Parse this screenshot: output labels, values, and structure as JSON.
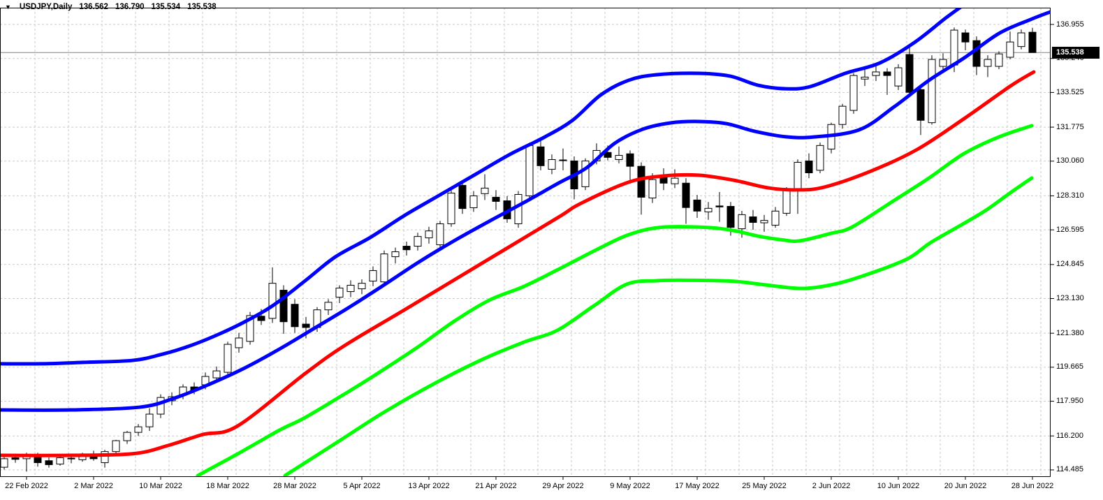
{
  "header": {
    "dropdown_glyph": "▼",
    "symbol_period": "USDJPY,Daily",
    "open": "136.562",
    "high": "136.790",
    "low": "135.534",
    "close": "135.538"
  },
  "price_axis": {
    "labels": [
      {
        "text": "136.955",
        "value": 136.955
      },
      {
        "text": "135.240",
        "value": 135.24
      },
      {
        "text": "133.525",
        "value": 133.525
      },
      {
        "text": "131.775",
        "value": 131.775
      },
      {
        "text": "130.060",
        "value": 130.06
      },
      {
        "text": "128.310",
        "value": 128.31
      },
      {
        "text": "126.595",
        "value": 126.595
      },
      {
        "text": "124.845",
        "value": 124.845
      },
      {
        "text": "123.130",
        "value": 123.13
      },
      {
        "text": "121.380",
        "value": 121.38
      },
      {
        "text": "119.665",
        "value": 119.665
      },
      {
        "text": "117.950",
        "value": 117.95
      },
      {
        "text": "116.200",
        "value": 116.2
      },
      {
        "text": "114.485",
        "value": 114.485
      }
    ],
    "current_price_tag": "135.538"
  },
  "time_axis": {
    "labels": [
      {
        "text": "22 Feb 2022",
        "candle_index": 2
      },
      {
        "text": "2 Mar 2022",
        "candle_index": 8
      },
      {
        "text": "10 Mar 2022",
        "candle_index": 14
      },
      {
        "text": "18 Mar 2022",
        "candle_index": 20
      },
      {
        "text": "28 Mar 2022",
        "candle_index": 26
      },
      {
        "text": "5 Apr 2022",
        "candle_index": 32
      },
      {
        "text": "13 Apr 2022",
        "candle_index": 38
      },
      {
        "text": "21 Apr 2022",
        "candle_index": 44
      },
      {
        "text": "29 Apr 2022",
        "candle_index": 50
      },
      {
        "text": "9 May 2022",
        "candle_index": 56
      },
      {
        "text": "17 May 2022",
        "candle_index": 62
      },
      {
        "text": "25 May 2022",
        "candle_index": 68
      },
      {
        "text": "2 Jun 2022",
        "candle_index": 74
      },
      {
        "text": "10 Jun 2022",
        "candle_index": 80
      },
      {
        "text": "20 Jun 2022",
        "candle_index": 86
      },
      {
        "text": "28 Jun 2022",
        "candle_index": 92
      }
    ]
  },
  "chart_data": {
    "type": "candlestick",
    "title": "USDJPY,Daily",
    "symbol": "USDJPY",
    "timeframe": "Daily",
    "grid": true,
    "legend_position": "none",
    "ylim": [
      114.13,
      138.19
    ],
    "current_price": 135.538,
    "last_bar_ohlc": [
      136.562,
      136.79,
      135.534,
      135.538
    ],
    "ohlc": [
      [
        114.62,
        115.15,
        114.5,
        115.05
      ],
      [
        115.1,
        115.3,
        114.85,
        115.02
      ],
      [
        115.05,
        115.35,
        114.4,
        115.25
      ],
      [
        115.25,
        115.35,
        114.65,
        114.85
      ],
      [
        114.95,
        115.12,
        114.6,
        114.75
      ],
      [
        114.78,
        115.2,
        114.7,
        115.1
      ],
      [
        115.08,
        115.3,
        114.82,
        115.04
      ],
      [
        115.0,
        115.35,
        114.9,
        115.28
      ],
      [
        115.28,
        115.45,
        114.95,
        115.05
      ],
      [
        114.85,
        115.5,
        114.6,
        115.41
      ],
      [
        115.41,
        116.0,
        115.25,
        115.96
      ],
      [
        115.96,
        116.45,
        115.8,
        116.38
      ],
      [
        116.38,
        116.8,
        116.2,
        116.66
      ],
      [
        116.66,
        117.6,
        116.45,
        117.3
      ],
      [
        117.3,
        118.3,
        117.1,
        118.14
      ],
      [
        117.97,
        118.4,
        117.75,
        118.18
      ],
      [
        118.25,
        118.8,
        118.05,
        118.67
      ],
      [
        118.67,
        118.9,
        118.3,
        118.49
      ],
      [
        118.78,
        119.4,
        118.55,
        119.2
      ],
      [
        119.13,
        119.7,
        118.9,
        119.48
      ],
      [
        119.41,
        120.95,
        119.3,
        120.82
      ],
      [
        120.65,
        121.4,
        120.4,
        121.14
      ],
      [
        120.97,
        122.45,
        120.8,
        122.27
      ],
      [
        122.24,
        122.6,
        121.8,
        122.02
      ],
      [
        122.13,
        124.7,
        121.9,
        123.9
      ],
      [
        123.55,
        123.8,
        121.35,
        121.96
      ],
      [
        122.84,
        123.1,
        121.4,
        121.71
      ],
      [
        121.84,
        122.2,
        121.12,
        121.67
      ],
      [
        121.67,
        122.7,
        121.45,
        122.56
      ],
      [
        122.56,
        123.1,
        122.3,
        122.94
      ],
      [
        123.2,
        123.8,
        122.9,
        123.66
      ],
      [
        123.48,
        124.05,
        123.2,
        123.8
      ],
      [
        123.62,
        124.1,
        123.35,
        123.9
      ],
      [
        124.01,
        124.75,
        123.75,
        124.54
      ],
      [
        123.97,
        125.55,
        123.8,
        125.38
      ],
      [
        125.24,
        125.7,
        124.9,
        125.49
      ],
      [
        125.77,
        126.0,
        125.3,
        125.59
      ],
      [
        125.77,
        126.45,
        125.55,
        126.26
      ],
      [
        126.19,
        126.75,
        125.9,
        126.54
      ],
      [
        125.84,
        127.05,
        125.6,
        126.9
      ],
      [
        126.9,
        128.6,
        126.75,
        128.45
      ],
      [
        128.84,
        129.1,
        127.4,
        127.67
      ],
      [
        127.71,
        128.55,
        127.5,
        128.31
      ],
      [
        128.42,
        129.4,
        128.1,
        128.7
      ],
      [
        128.24,
        128.6,
        127.6,
        128.03
      ],
      [
        128.06,
        128.3,
        126.95,
        127.15
      ],
      [
        126.9,
        128.55,
        126.7,
        128.38
      ],
      [
        128.31,
        131.0,
        128.2,
        130.85
      ],
      [
        130.78,
        131.25,
        129.6,
        129.83
      ],
      [
        129.65,
        130.4,
        129.4,
        130.14
      ],
      [
        130.12,
        130.7,
        129.6,
        130.09
      ],
      [
        130.07,
        130.3,
        128.13,
        128.66
      ],
      [
        128.77,
        130.2,
        128.6,
        130.07
      ],
      [
        130.07,
        130.96,
        129.9,
        130.6
      ],
      [
        130.5,
        130.85,
        130.1,
        130.25
      ],
      [
        130.14,
        130.8,
        129.95,
        130.35
      ],
      [
        130.43,
        130.6,
        129.0,
        129.8
      ],
      [
        129.8,
        130.0,
        127.36,
        128.24
      ],
      [
        128.2,
        129.45,
        127.95,
        129.13
      ],
      [
        129.26,
        129.7,
        128.6,
        128.95
      ],
      [
        128.92,
        129.65,
        128.7,
        129.2
      ],
      [
        128.95,
        129.2,
        126.9,
        127.72
      ],
      [
        128.1,
        128.35,
        127.2,
        127.54
      ],
      [
        127.5,
        128.0,
        127.1,
        127.68
      ],
      [
        127.8,
        128.5,
        127.0,
        127.75
      ],
      [
        127.78,
        128.0,
        126.3,
        126.72
      ],
      [
        126.65,
        127.55,
        126.2,
        127.36
      ],
      [
        127.25,
        127.6,
        126.6,
        126.97
      ],
      [
        126.95,
        127.35,
        126.5,
        127.07
      ],
      [
        126.83,
        127.75,
        126.7,
        127.54
      ],
      [
        127.43,
        128.75,
        127.3,
        128.59
      ],
      [
        128.6,
        130.15,
        127.4,
        130.0
      ],
      [
        130.07,
        130.45,
        129.2,
        129.47
      ],
      [
        129.6,
        131.0,
        129.45,
        130.85
      ],
      [
        130.67,
        132.0,
        130.45,
        131.91
      ],
      [
        131.91,
        132.95,
        131.7,
        132.83
      ],
      [
        132.62,
        134.5,
        132.45,
        134.38
      ],
      [
        134.2,
        134.75,
        133.85,
        134.3
      ],
      [
        134.38,
        134.85,
        134.1,
        134.56
      ],
      [
        134.56,
        134.75,
        133.4,
        134.38
      ],
      [
        133.85,
        134.95,
        133.65,
        134.77
      ],
      [
        135.44,
        135.8,
        133.3,
        133.53
      ],
      [
        133.67,
        133.9,
        131.38,
        132.12
      ],
      [
        132.0,
        135.4,
        131.9,
        135.19
      ],
      [
        134.84,
        135.5,
        134.5,
        135.19
      ],
      [
        134.91,
        136.8,
        134.55,
        136.67
      ],
      [
        136.53,
        136.7,
        135.65,
        136.07
      ],
      [
        136.14,
        136.35,
        134.4,
        134.84
      ],
      [
        134.84,
        135.4,
        134.3,
        135.19
      ],
      [
        134.84,
        135.6,
        134.7,
        135.47
      ],
      [
        135.3,
        136.6,
        135.2,
        136.07
      ],
      [
        135.84,
        136.7,
        135.7,
        136.53
      ],
      [
        136.562,
        136.79,
        135.534,
        135.538
      ]
    ],
    "bands": [
      {
        "name": "upper-band-outer",
        "color": "#0000FF",
        "points": [
          [
            0,
            119.84
          ],
          [
            60,
            119.84
          ],
          [
            120,
            119.91
          ],
          [
            190,
            120.01
          ],
          [
            230,
            120.3
          ],
          [
            270,
            120.72
          ],
          [
            310,
            121.28
          ],
          [
            350,
            121.95
          ],
          [
            390,
            122.76
          ],
          [
            437,
            124.03
          ],
          [
            480,
            125.23
          ],
          [
            530,
            126.21
          ],
          [
            580,
            127.34
          ],
          [
            630,
            128.36
          ],
          [
            680,
            129.38
          ],
          [
            730,
            130.4
          ],
          [
            780,
            131.28
          ],
          [
            820,
            132.13
          ],
          [
            860,
            133.4
          ],
          [
            900,
            134.14
          ],
          [
            940,
            134.42
          ],
          [
            1000,
            134.49
          ],
          [
            1045,
            134.35
          ],
          [
            1085,
            133.89
          ],
          [
            1125,
            133.71
          ],
          [
            1160,
            133.82
          ],
          [
            1210,
            134.49
          ],
          [
            1260,
            135.02
          ],
          [
            1310,
            136.07
          ],
          [
            1355,
            137.31
          ],
          [
            1392,
            138.25
          ]
        ]
      },
      {
        "name": "upper-band-inner",
        "color": "#0000FF",
        "points": [
          [
            0,
            117.51
          ],
          [
            100,
            117.51
          ],
          [
            200,
            117.65
          ],
          [
            250,
            118.11
          ],
          [
            300,
            118.81
          ],
          [
            350,
            119.62
          ],
          [
            400,
            120.58
          ],
          [
            450,
            121.63
          ],
          [
            500,
            122.69
          ],
          [
            550,
            123.82
          ],
          [
            600,
            124.98
          ],
          [
            650,
            126.04
          ],
          [
            700,
            127.02
          ],
          [
            750,
            127.97
          ],
          [
            800,
            128.96
          ],
          [
            840,
            129.73
          ],
          [
            880,
            130.96
          ],
          [
            920,
            131.67
          ],
          [
            960,
            131.99
          ],
          [
            1000,
            132.06
          ],
          [
            1040,
            131.95
          ],
          [
            1080,
            131.57
          ],
          [
            1125,
            131.29
          ],
          [
            1165,
            131.28
          ],
          [
            1230,
            131.64
          ],
          [
            1280,
            132.8
          ],
          [
            1330,
            134.14
          ],
          [
            1380,
            135.26
          ],
          [
            1430,
            136.5
          ],
          [
            1475,
            137.2
          ],
          [
            1506,
            137.62
          ]
        ]
      },
      {
        "name": "middle-band",
        "color": "#FF0000",
        "points": [
          [
            0,
            115.22
          ],
          [
            100,
            115.22
          ],
          [
            190,
            115.3
          ],
          [
            240,
            115.71
          ],
          [
            290,
            116.27
          ],
          [
            340,
            116.7
          ],
          [
            437,
            119.35
          ],
          [
            493,
            120.75
          ],
          [
            580,
            122.58
          ],
          [
            680,
            124.7
          ],
          [
            798,
            127.2
          ],
          [
            830,
            127.9
          ],
          [
            900,
            129.0
          ],
          [
            950,
            129.31
          ],
          [
            1000,
            129.35
          ],
          [
            1050,
            129.1
          ],
          [
            1100,
            128.71
          ],
          [
            1140,
            128.61
          ],
          [
            1180,
            128.75
          ],
          [
            1247,
            129.56
          ],
          [
            1313,
            130.65
          ],
          [
            1380,
            132.2
          ],
          [
            1447,
            133.86
          ],
          [
            1480,
            134.56
          ]
        ]
      },
      {
        "name": "lower-band-inner",
        "color": "#00FF00",
        "points": [
          [
            283,
            114.2
          ],
          [
            340,
            115.29
          ],
          [
            400,
            116.49
          ],
          [
            437,
            117.13
          ],
          [
            500,
            118.46
          ],
          [
            540,
            119.34
          ],
          [
            598,
            120.68
          ],
          [
            650,
            121.98
          ],
          [
            700,
            123.04
          ],
          [
            750,
            123.74
          ],
          [
            797,
            124.56
          ],
          [
            860,
            125.7
          ],
          [
            900,
            126.35
          ],
          [
            945,
            126.72
          ],
          [
            1010,
            126.72
          ],
          [
            1050,
            126.56
          ],
          [
            1085,
            126.28
          ],
          [
            1120,
            126.09
          ],
          [
            1145,
            126.04
          ],
          [
            1190,
            126.42
          ],
          [
            1220,
            126.74
          ],
          [
            1280,
            128.08
          ],
          [
            1330,
            129.21
          ],
          [
            1380,
            130.44
          ],
          [
            1430,
            131.28
          ],
          [
            1477,
            131.85
          ]
        ]
      },
      {
        "name": "lower-band-outer",
        "color": "#00FF00",
        "points": [
          [
            408,
            114.2
          ],
          [
            480,
            115.82
          ],
          [
            550,
            117.4
          ],
          [
            620,
            118.81
          ],
          [
            690,
            120.05
          ],
          [
            750,
            120.93
          ],
          [
            798,
            121.53
          ],
          [
            850,
            122.76
          ],
          [
            897,
            123.85
          ],
          [
            940,
            124.03
          ],
          [
            990,
            124.05
          ],
          [
            1050,
            124.0
          ],
          [
            1100,
            123.8
          ],
          [
            1150,
            123.64
          ],
          [
            1200,
            123.9
          ],
          [
            1250,
            124.45
          ],
          [
            1300,
            125.15
          ],
          [
            1333,
            125.97
          ],
          [
            1380,
            126.92
          ],
          [
            1413,
            127.62
          ],
          [
            1445,
            128.43
          ],
          [
            1477,
            129.21
          ]
        ]
      }
    ]
  },
  "colors": {
    "background": "#FFFFFF",
    "bull_fill": "#FFFFFF",
    "bear_fill": "#000000",
    "candle_border": "#000000",
    "band_blue": "#0000FF",
    "band_red": "#FF0000",
    "band_green": "#00FF00",
    "grid": "#C9C9C9",
    "frame": "#000000",
    "current_price_line": "#808080",
    "tag_bg": "#000000",
    "tag_text": "#FFFFFF",
    "text": "#000000"
  }
}
